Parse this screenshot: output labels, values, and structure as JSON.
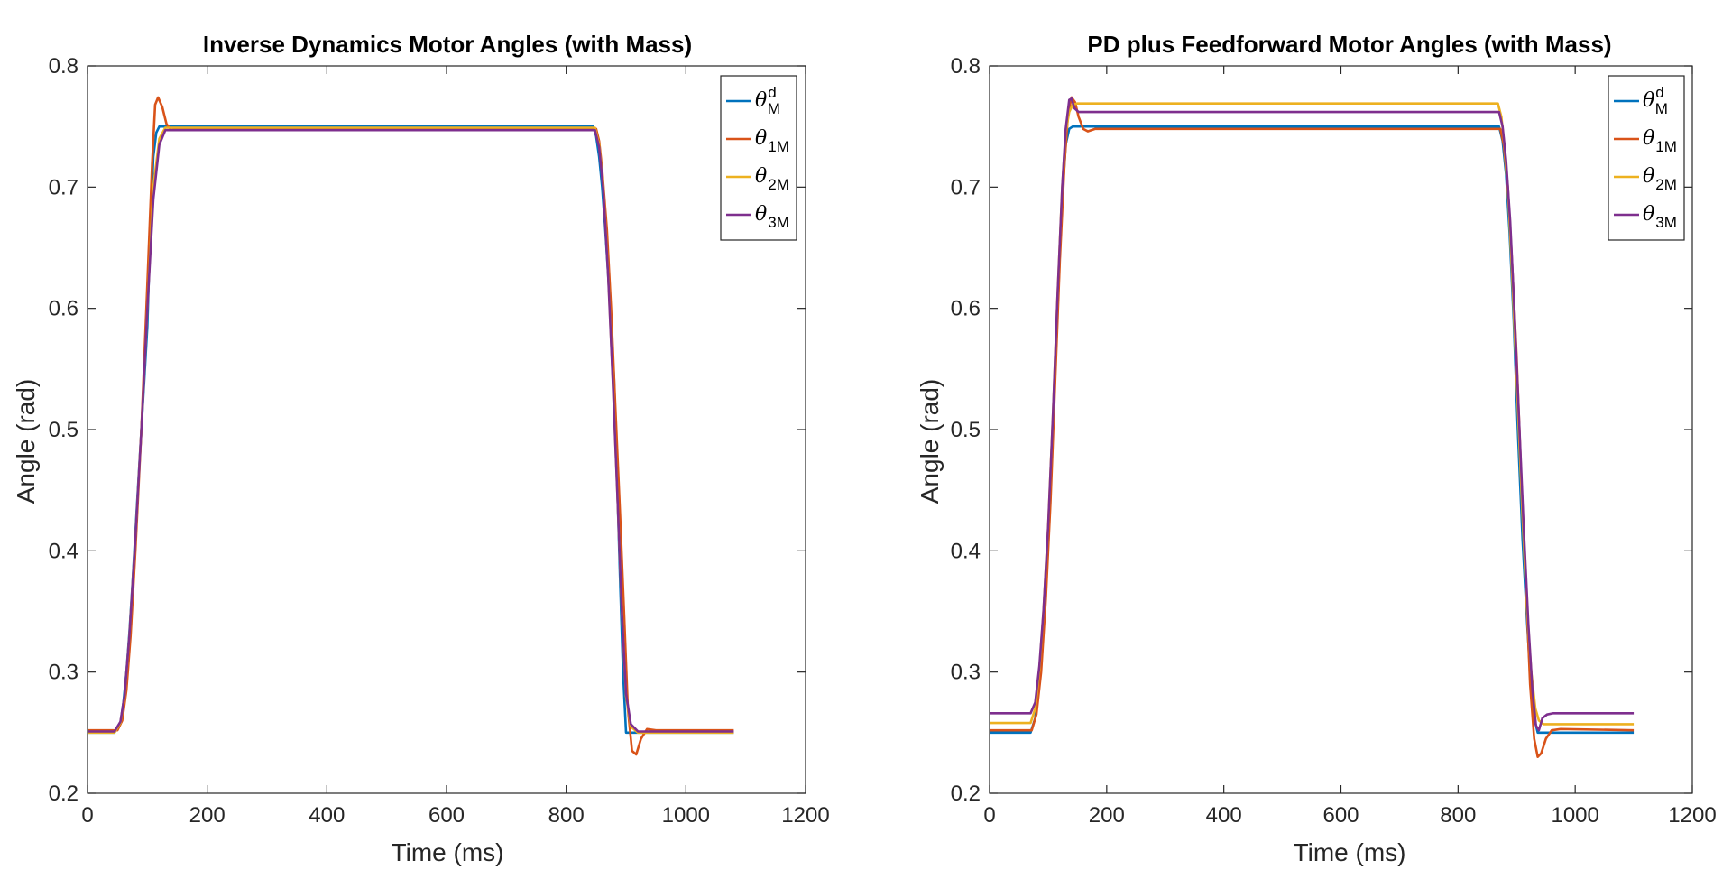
{
  "chart_data": [
    {
      "type": "line",
      "title": "Inverse Dynamics Motor Angles (with Mass)",
      "xlabel": "Time (ms)",
      "ylabel": "Angle (rad)",
      "xlim": [
        0,
        1200
      ],
      "ylim": [
        0.2,
        0.8
      ],
      "xticks": [
        0,
        200,
        400,
        600,
        800,
        1000,
        1200
      ],
      "yticks": [
        0.2,
        0.3,
        0.4,
        0.5,
        0.6,
        0.7,
        0.8
      ],
      "xtick_labels": [
        "0",
        "200",
        "400",
        "600",
        "800",
        "1000",
        "1200"
      ],
      "ytick_labels": [
        "0.2",
        "0.3",
        "0.4",
        "0.5",
        "0.6",
        "0.7",
        "0.8"
      ],
      "grid": false,
      "legend_position": "top-right",
      "series": [
        {
          "symbol": "θ",
          "sup": "d",
          "sub": "M",
          "color": "#0072BD",
          "x": [
            0,
            45,
            55,
            60,
            65,
            70,
            75,
            80,
            85,
            90,
            95,
            100,
            105,
            110,
            115,
            120,
            845,
            850,
            855,
            860,
            865,
            870,
            875,
            880,
            885,
            890,
            895,
            900,
            1080
          ],
          "y": [
            0.25,
            0.25,
            0.258,
            0.275,
            0.3,
            0.333,
            0.372,
            0.415,
            0.458,
            0.5,
            0.542,
            0.585,
            0.665,
            0.725,
            0.745,
            0.75,
            0.75,
            0.742,
            0.725,
            0.7,
            0.667,
            0.628,
            0.585,
            0.542,
            0.458,
            0.375,
            0.3,
            0.25,
            0.25
          ]
        },
        {
          "symbol": "θ",
          "sub": "1M",
          "color": "#D95319",
          "x": [
            0,
            50,
            58,
            65,
            72,
            80,
            90,
            100,
            108,
            113,
            118,
            125,
            132,
            140,
            150,
            160,
            850,
            855,
            860,
            868,
            875,
            882,
            890,
            897,
            903,
            910,
            917,
            925,
            935,
            950,
            1080
          ],
          "y": [
            0.252,
            0.252,
            0.26,
            0.285,
            0.33,
            0.4,
            0.5,
            0.62,
            0.72,
            0.768,
            0.774,
            0.766,
            0.752,
            0.747,
            0.748,
            0.748,
            0.748,
            0.738,
            0.715,
            0.665,
            0.6,
            0.52,
            0.43,
            0.345,
            0.27,
            0.235,
            0.232,
            0.245,
            0.253,
            0.252,
            0.252
          ]
        },
        {
          "symbol": "θ",
          "sub": "2M",
          "color": "#EDB120",
          "x": [
            0,
            45,
            55,
            62,
            70,
            80,
            90,
            100,
            110,
            120,
            130,
            848,
            855,
            862,
            870,
            878,
            886,
            893,
            900,
            908,
            920,
            1080
          ],
          "y": [
            0.25,
            0.25,
            0.258,
            0.28,
            0.33,
            0.41,
            0.5,
            0.6,
            0.7,
            0.74,
            0.749,
            0.749,
            0.735,
            0.7,
            0.63,
            0.54,
            0.44,
            0.35,
            0.28,
            0.255,
            0.25,
            0.25
          ]
        },
        {
          "symbol": "θ",
          "sub": "3M",
          "color": "#7E2F8E",
          "x": [
            0,
            45,
            55,
            62,
            70,
            80,
            90,
            100,
            110,
            120,
            130,
            848,
            855,
            862,
            870,
            878,
            886,
            893,
            900,
            908,
            920,
            1080
          ],
          "y": [
            0.251,
            0.251,
            0.259,
            0.281,
            0.33,
            0.41,
            0.5,
            0.6,
            0.69,
            0.735,
            0.747,
            0.747,
            0.733,
            0.698,
            0.628,
            0.538,
            0.44,
            0.35,
            0.282,
            0.257,
            0.251,
            0.251
          ]
        }
      ]
    },
    {
      "type": "line",
      "title": "PD plus Feedforward Motor Angles (with Mass)",
      "xlabel": "Time (ms)",
      "ylabel": "Angle (rad)",
      "xlim": [
        0,
        1200
      ],
      "ylim": [
        0.2,
        0.8
      ],
      "xticks": [
        0,
        200,
        400,
        600,
        800,
        1000,
        1200
      ],
      "yticks": [
        0.2,
        0.3,
        0.4,
        0.5,
        0.6,
        0.7,
        0.8
      ],
      "xtick_labels": [
        "0",
        "200",
        "400",
        "600",
        "800",
        "1000",
        "1200"
      ],
      "ytick_labels": [
        "0.2",
        "0.3",
        "0.4",
        "0.5",
        "0.6",
        "0.7",
        "0.8"
      ],
      "grid": false,
      "legend_position": "top-right",
      "series": [
        {
          "symbol": "θ",
          "sup": "d",
          "sub": "M",
          "color": "#0072BD",
          "x": [
            0,
            70,
            78,
            85,
            92,
            100,
            108,
            116,
            124,
            130,
            136,
            142,
            870,
            876,
            882,
            888,
            895,
            902,
            910,
            918,
            924,
            930,
            936,
            1100
          ],
          "y": [
            0.25,
            0.25,
            0.262,
            0.292,
            0.34,
            0.41,
            0.5,
            0.6,
            0.69,
            0.735,
            0.748,
            0.75,
            0.75,
            0.738,
            0.71,
            0.662,
            0.59,
            0.5,
            0.41,
            0.34,
            0.292,
            0.262,
            0.25,
            0.25
          ]
        },
        {
          "symbol": "θ",
          "sub": "1M",
          "color": "#D95319",
          "x": [
            0,
            72,
            80,
            88,
            96,
            104,
            112,
            120,
            128,
            134,
            140,
            146,
            152,
            160,
            168,
            180,
            200,
            872,
            878,
            885,
            892,
            900,
            908,
            916,
            923,
            930,
            936,
            942,
            950,
            960,
            975,
            1100
          ],
          "y": [
            0.252,
            0.252,
            0.265,
            0.3,
            0.36,
            0.44,
            0.54,
            0.64,
            0.72,
            0.76,
            0.774,
            0.77,
            0.758,
            0.748,
            0.746,
            0.748,
            0.748,
            0.748,
            0.735,
            0.7,
            0.64,
            0.56,
            0.46,
            0.37,
            0.29,
            0.245,
            0.23,
            0.233,
            0.245,
            0.252,
            0.253,
            0.252
          ]
        },
        {
          "symbol": "θ",
          "sub": "2M",
          "color": "#EDB120",
          "x": [
            0,
            70,
            78,
            85,
            92,
            100,
            108,
            116,
            124,
            130,
            136,
            142,
            150,
            868,
            874,
            880,
            887,
            894,
            902,
            910,
            918,
            925,
            932,
            938,
            946,
            1100
          ],
          "y": [
            0.258,
            0.258,
            0.27,
            0.302,
            0.35,
            0.42,
            0.51,
            0.61,
            0.7,
            0.745,
            0.762,
            0.768,
            0.769,
            0.769,
            0.758,
            0.73,
            0.682,
            0.61,
            0.52,
            0.43,
            0.35,
            0.3,
            0.27,
            0.26,
            0.257,
            0.257
          ]
        },
        {
          "symbol": "θ",
          "sub": "3M",
          "color": "#7E2F8E",
          "x": [
            0,
            70,
            78,
            85,
            92,
            100,
            108,
            116,
            124,
            130,
            136,
            140,
            145,
            152,
            160,
            870,
            876,
            882,
            889,
            896,
            904,
            912,
            920,
            927,
            933,
            938,
            944,
            952,
            962,
            1100
          ],
          "y": [
            0.266,
            0.266,
            0.275,
            0.305,
            0.35,
            0.42,
            0.51,
            0.61,
            0.7,
            0.748,
            0.772,
            0.773,
            0.765,
            0.762,
            0.762,
            0.762,
            0.75,
            0.722,
            0.672,
            0.6,
            0.51,
            0.42,
            0.34,
            0.285,
            0.256,
            0.252,
            0.262,
            0.265,
            0.266,
            0.266
          ]
        }
      ]
    }
  ]
}
